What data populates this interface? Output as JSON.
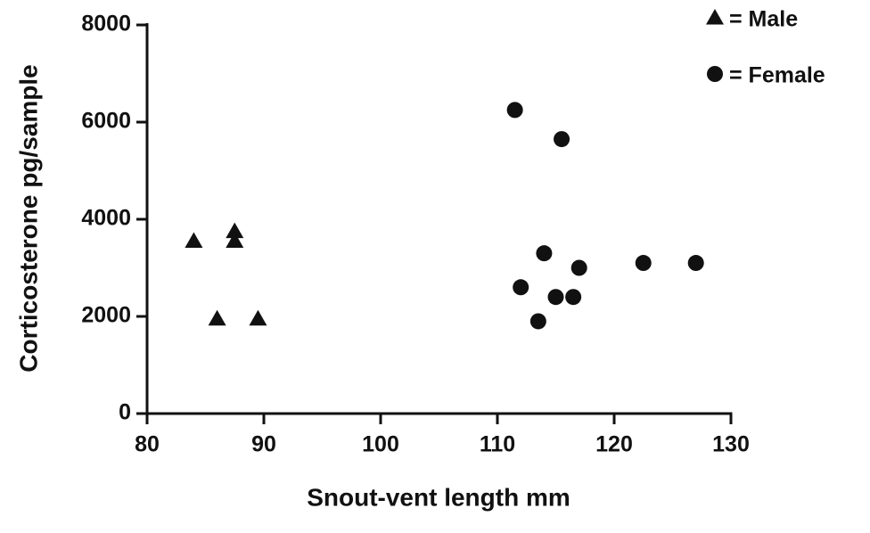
{
  "chart_data": {
    "type": "scatter",
    "x_label": "Snout-vent length mm",
    "y_label": "Corticosterone pg/sample",
    "xlim": [
      80,
      130
    ],
    "xticks": [
      80,
      90,
      100,
      110,
      120,
      130
    ],
    "ylim": [
      0,
      8000
    ],
    "yticks": [
      0,
      2000,
      4000,
      6000,
      8000
    ],
    "series": [
      {
        "name": "= Male",
        "color": "#111111",
        "marker": "triangle",
        "x": [
          84,
          86,
          87.5,
          87.5,
          89.5
        ],
        "values": [
          3550,
          1950,
          3750,
          3550,
          1950
        ]
      },
      {
        "name": "= Female",
        "color": "#111111",
        "marker": "circle",
        "x": [
          111.5,
          115.5,
          114,
          112,
          115,
          116.5,
          113.5,
          117,
          122.5,
          127
        ],
        "values": [
          6250,
          5650,
          3300,
          2600,
          2400,
          2400,
          1900,
          3000,
          3100,
          3100
        ]
      }
    ]
  }
}
